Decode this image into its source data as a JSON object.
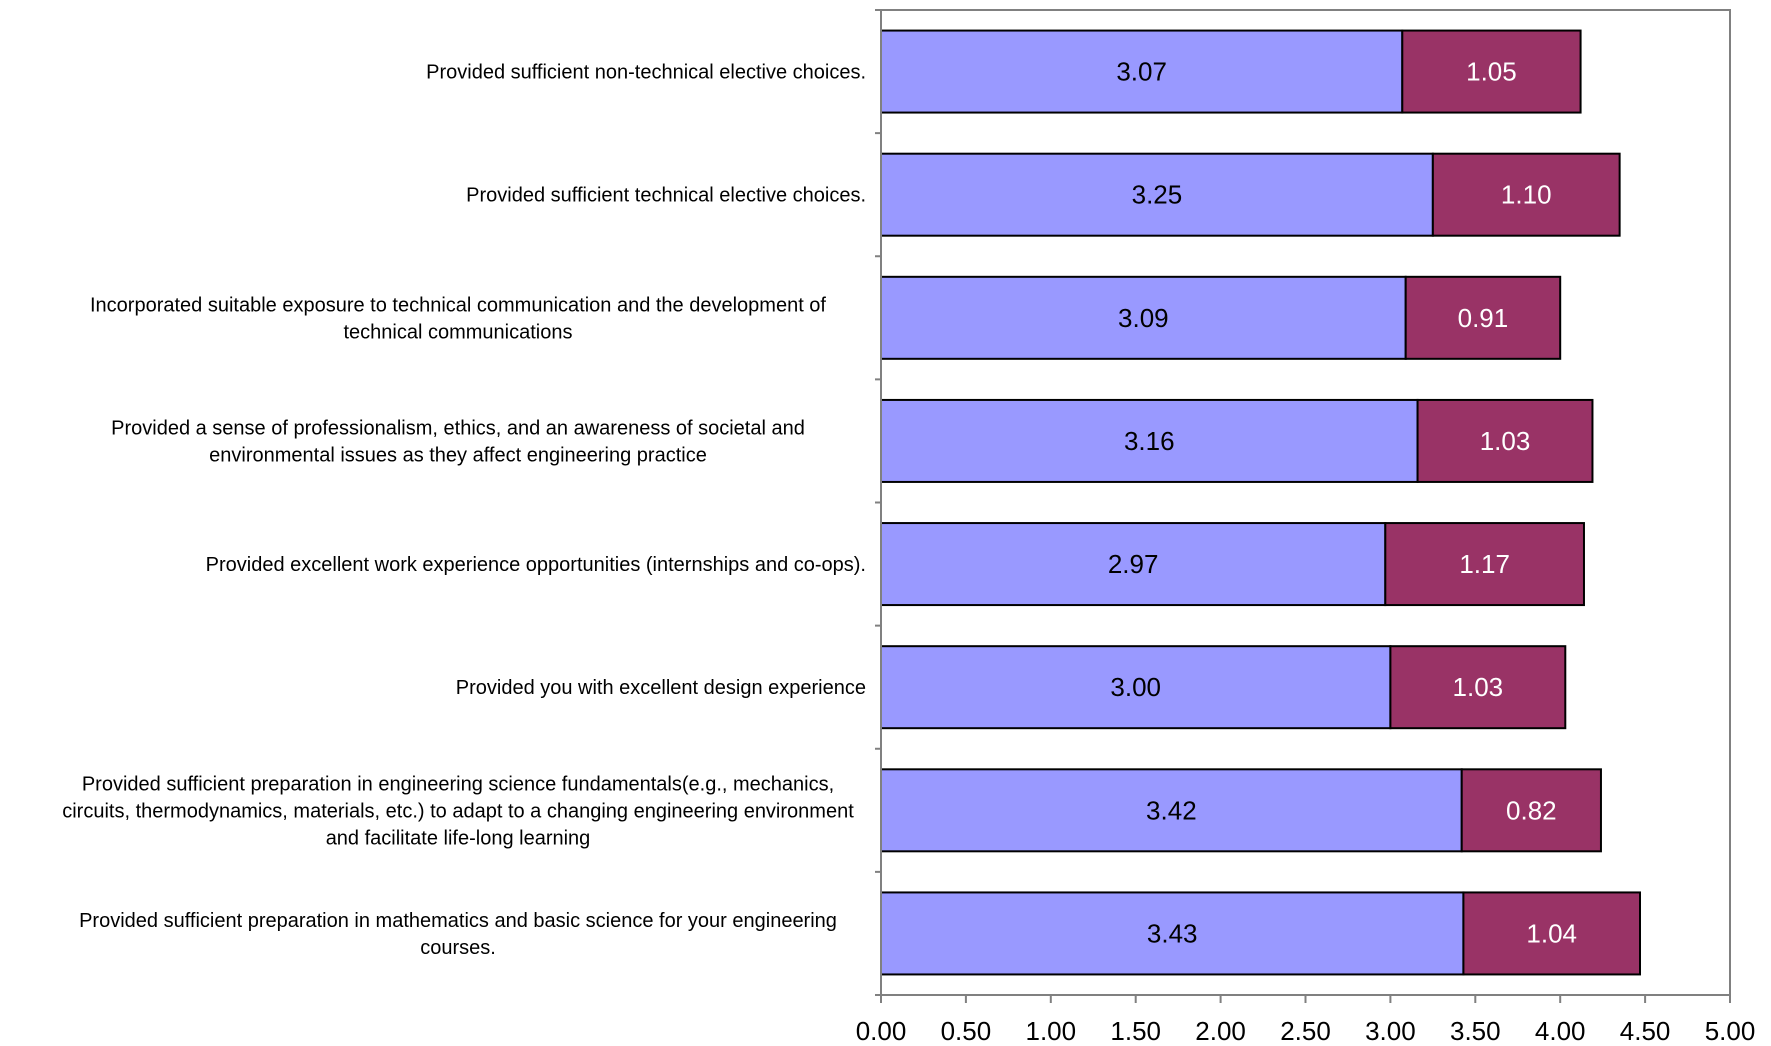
{
  "chart_data": {
    "type": "bar",
    "orientation": "horizontal",
    "stacked": true,
    "categories": [
      [
        "Provided sufficient non-technical elective choices."
      ],
      [
        "Provided sufficient technical elective choices."
      ],
      [
        "Incorporated suitable exposure to technical communication and the development of",
        "technical communications"
      ],
      [
        "Provided a sense of professionalism, ethics, and an awareness of societal and",
        "environmental issues as they affect engineering practice"
      ],
      [
        "Provided excellent work experience opportunities (internships and co-ops)."
      ],
      [
        "Provided you with excellent design experience"
      ],
      [
        "Provided sufficient preparation in engineering science fundamentals(e.g., mechanics,",
        "circuits, thermodynamics, materials, etc.) to adapt to a changing engineering environment",
        "and facilitate life-long learning"
      ],
      [
        "Provided sufficient preparation in mathematics and basic science for your engineering",
        "courses."
      ]
    ],
    "series": [
      {
        "values": [
          3.07,
          3.25,
          3.09,
          3.16,
          2.97,
          3.0,
          3.42,
          3.43
        ],
        "labels": [
          "3.07",
          "3.25",
          "3.09",
          "3.16",
          "2.97",
          "3.00",
          "3.42",
          "3.43"
        ],
        "color": "#9999ff",
        "label_color": "#000000"
      },
      {
        "values": [
          1.05,
          1.1,
          0.91,
          1.03,
          1.17,
          1.03,
          0.82,
          1.04
        ],
        "labels": [
          "1.05",
          "1.10",
          "0.91",
          "1.03",
          "1.17",
          "1.03",
          "0.82",
          "1.04"
        ],
        "color": "#993366",
        "label_color": "#ffffff"
      }
    ],
    "xlim": [
      0,
      5
    ],
    "xticks": [
      0,
      0.5,
      1,
      1.5,
      2,
      2.5,
      3,
      3.5,
      4,
      4.5,
      5
    ],
    "xtick_labels": [
      "0.00",
      "0.50",
      "1.00",
      "1.50",
      "2.00",
      "2.50",
      "3.00",
      "3.50",
      "4.00",
      "4.50",
      "5.00"
    ],
    "title": "",
    "xlabel": "",
    "ylabel": "",
    "grid": false,
    "legend": "none",
    "colors": {
      "axis": "#808080",
      "bar_border": "#000000",
      "background": "#ffffff"
    }
  }
}
